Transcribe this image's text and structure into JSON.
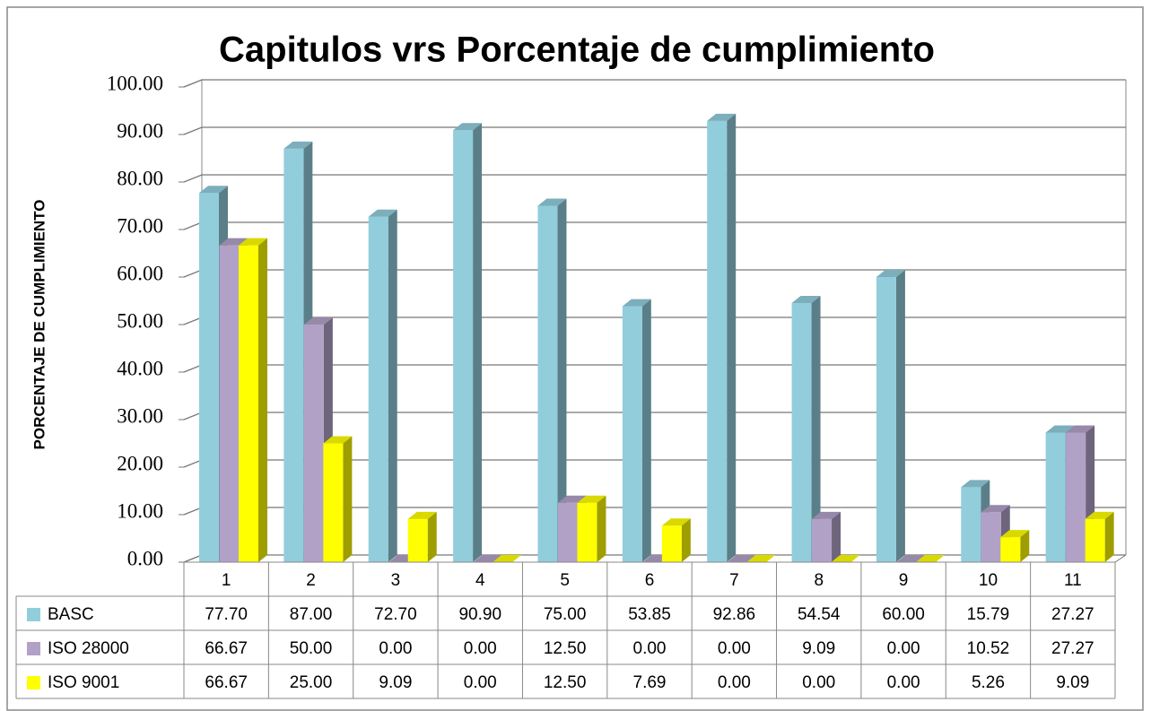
{
  "chart_data": {
    "type": "bar3d",
    "title": "Capitulos vrs Porcentaje de cumplimiento",
    "y_label": "PORCENTAJE DE CUMPLIMIENTO",
    "categories": [
      "1",
      "2",
      "3",
      "4",
      "5",
      "6",
      "7",
      "8",
      "9",
      "10",
      "11"
    ],
    "series": [
      {
        "name": "BASC",
        "color": "#92cddc",
        "values": [
          77.7,
          87.0,
          72.7,
          90.9,
          75.0,
          53.85,
          92.86,
          54.54,
          60.0,
          15.79,
          27.27
        ],
        "value_labels": [
          "77.70",
          "87.00",
          "72.70",
          "90.90",
          "75.00",
          "53.85",
          "92.86",
          "54.54",
          "60.00",
          "15.79",
          "27.27"
        ]
      },
      {
        "name": "ISO 28000",
        "color": "#b2a1c7",
        "values": [
          66.67,
          50.0,
          0.0,
          0.0,
          12.5,
          0.0,
          0.0,
          9.09,
          0.0,
          10.52,
          27.27
        ],
        "value_labels": [
          "66.67",
          "50.00",
          "0.00",
          "0.00",
          "12.50",
          "0.00",
          "0.00",
          "9.09",
          "0.00",
          "10.52",
          "27.27"
        ]
      },
      {
        "name": "ISO 9001",
        "color": "#ffff00",
        "values": [
          66.67,
          25.0,
          9.09,
          0.0,
          12.5,
          7.69,
          0.0,
          0.0,
          0.0,
          5.26,
          9.09
        ],
        "value_labels": [
          "66.67",
          "25.00",
          "9.09",
          "0.00",
          "12.50",
          "7.69",
          "0.00",
          "0.00",
          "0.00",
          "5.26",
          "9.09"
        ]
      }
    ],
    "ylim": [
      0,
      100
    ],
    "yticks": [
      {
        "value": 0,
        "label": "0.00"
      },
      {
        "value": 10,
        "label": "10.00"
      },
      {
        "value": 20,
        "label": "20.00"
      },
      {
        "value": 30,
        "label": "30.00"
      },
      {
        "value": 40,
        "label": "40.00"
      },
      {
        "value": 50,
        "label": "50.00"
      },
      {
        "value": 60,
        "label": "60.00"
      },
      {
        "value": 70,
        "label": "70.00"
      },
      {
        "value": 80,
        "label": "80.00"
      },
      {
        "value": 90,
        "label": "90.00"
      },
      {
        "value": 100,
        "label": "100.00"
      }
    ],
    "grid": true
  }
}
